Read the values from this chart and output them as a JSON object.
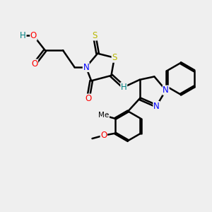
{
  "background_color": "#efefef",
  "bond_color": "#000000",
  "bond_width": 1.8,
  "atom_colors": {
    "S": "#b8b800",
    "N": "#0000ff",
    "O": "#ff0000",
    "H": "#008080",
    "C": "#000000"
  },
  "font_size": 8.5,
  "figsize": [
    3.0,
    3.0
  ],
  "dpi": 100
}
